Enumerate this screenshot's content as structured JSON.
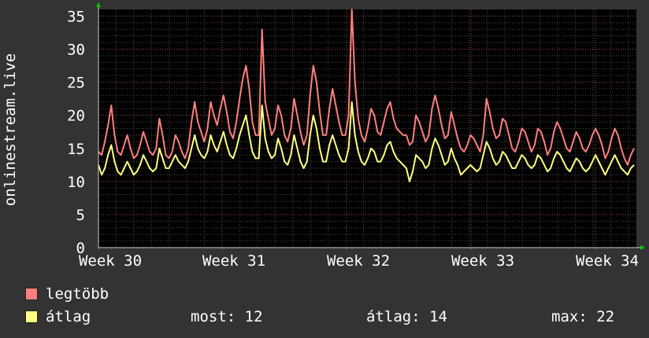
{
  "chart_data": {
    "type": "line",
    "ylabel": "onlinestream.live",
    "ylim": [
      0,
      36
    ],
    "yticks": [
      0,
      5,
      10,
      15,
      20,
      25,
      30,
      35
    ],
    "xtick_labels": [
      "Week 30",
      "Week 31",
      "Week 32",
      "Week 33",
      "Week 34"
    ],
    "grid": true,
    "series": [
      {
        "name": "legtöbb",
        "color": "#ff7f7f",
        "values": [
          14.5,
          14,
          16,
          18.5,
          21.5,
          17,
          14.5,
          14,
          15.5,
          17,
          15,
          13.5,
          14,
          15.5,
          17.5,
          16,
          14.5,
          14,
          15,
          19.5,
          17,
          14,
          13.5,
          14.5,
          17,
          16,
          14.5,
          13.5,
          15,
          19,
          22,
          19,
          17.5,
          16,
          18,
          22,
          20,
          18.5,
          21,
          23,
          20.5,
          17.5,
          16.5,
          19,
          22.5,
          25.5,
          27.5,
          24,
          19,
          17,
          17,
          33,
          22,
          19.5,
          17,
          18,
          21.5,
          20,
          17,
          16,
          18,
          22.5,
          20,
          17.5,
          15.5,
          17,
          23,
          27.5,
          25,
          20.5,
          17,
          17,
          21,
          24,
          21.5,
          19,
          17,
          17,
          20,
          36,
          25,
          19.5,
          17,
          16,
          18,
          21,
          20,
          17.5,
          17,
          19,
          21,
          22,
          19.5,
          18,
          17.5,
          17,
          17,
          15.5,
          16,
          20,
          19,
          17.5,
          16,
          17,
          21,
          23,
          21,
          18.5,
          16.5,
          17,
          20.5,
          18.5,
          16.5,
          15,
          14.5,
          15.5,
          17,
          16.5,
          15.5,
          14.5,
          17,
          22.5,
          20.5,
          18,
          16.5,
          17,
          19.5,
          19,
          17,
          15,
          14.5,
          16,
          18,
          17.5,
          16,
          14.5,
          15.5,
          18,
          17.5,
          16,
          14,
          15,
          17.5,
          19,
          18,
          16.5,
          15,
          14.5,
          16,
          17.5,
          16.5,
          15,
          14.5,
          15.5,
          17,
          18,
          17,
          15.5,
          13.5,
          14.5,
          16.5,
          18,
          17,
          15,
          13.5,
          12.5,
          14,
          15
        ]
      },
      {
        "name": "átlag",
        "color": "#ffff80",
        "values": [
          12.5,
          11,
          12,
          14,
          15.5,
          13,
          11.5,
          11,
          12,
          13,
          12,
          11,
          11.5,
          12.5,
          14,
          13,
          12,
          11.5,
          12,
          15,
          13.5,
          12,
          12,
          13,
          14,
          13,
          12.5,
          12,
          13,
          15,
          17,
          15,
          14,
          13.5,
          14.5,
          17,
          15.5,
          14.5,
          16,
          17.5,
          15.5,
          14,
          13.5,
          15,
          17,
          18.5,
          20,
          17,
          14.5,
          13.5,
          13.5,
          21.5,
          16.5,
          14.5,
          13.5,
          14,
          16.5,
          15,
          13,
          12.5,
          14,
          17,
          15,
          13,
          12,
          13,
          17,
          20,
          18,
          15,
          13,
          13,
          15.5,
          17,
          15.5,
          14,
          13,
          13,
          15,
          22,
          17,
          14.5,
          13,
          12.5,
          13.5,
          15,
          14.5,
          13,
          13,
          14,
          15.5,
          16,
          14.5,
          13.5,
          13,
          12.5,
          12,
          10,
          11.5,
          14,
          13.5,
          13,
          12,
          12.5,
          15,
          16.5,
          15.5,
          14,
          12.5,
          13,
          15,
          13.5,
          12.5,
          11,
          11.5,
          12,
          12.5,
          12,
          11.5,
          12,
          14,
          16,
          15,
          13.5,
          12.5,
          13,
          14.5,
          14,
          13,
          12,
          12,
          13,
          14,
          13.5,
          12.5,
          12,
          12.5,
          14,
          13.5,
          12.5,
          11.5,
          12,
          13.5,
          14.5,
          14,
          13,
          12,
          11.5,
          12.5,
          13.5,
          13,
          12,
          11.5,
          12,
          13,
          14,
          13,
          12,
          11,
          12,
          13,
          14,
          13,
          12,
          11.5,
          11,
          12,
          12.5
        ]
      }
    ]
  },
  "legend": {
    "max_label": "legtöbb",
    "avg_label": "átlag",
    "stats": {
      "now": "most: 12",
      "avg": "átlag: 14",
      "max": "max: 22"
    }
  }
}
